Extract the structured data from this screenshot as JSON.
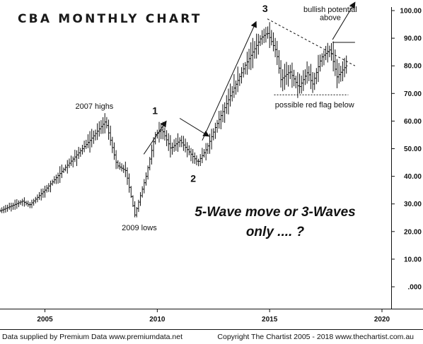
{
  "chart_data": {
    "type": "ohlc",
    "title": "CBA MONTHLY CHART",
    "xlabel": "",
    "ylabel": "",
    "xlim": [
      2003.0,
      2020.0
    ],
    "ylim": [
      0,
      100
    ],
    "x_ticks": [
      "2005",
      "2010",
      "2015",
      "2020"
    ],
    "y_ticks": [
      "100.00",
      "90.00",
      "80.00",
      "70.00",
      "60.00",
      "50.00",
      "40.00",
      "30.00",
      "20.00",
      "10.00",
      ".000"
    ],
    "grid": false,
    "anchors": [
      {
        "x": 2003.0,
        "y": 27.5
      },
      {
        "x": 2004.0,
        "y": 31
      },
      {
        "x": 2004.3,
        "y": 29.5
      },
      {
        "x": 2005.0,
        "y": 35
      },
      {
        "x": 2006.0,
        "y": 44
      },
      {
        "x": 2007.0,
        "y": 53
      },
      {
        "x": 2007.7,
        "y": 60
      },
      {
        "x": 2008.2,
        "y": 44
      },
      {
        "x": 2008.6,
        "y": 42
      },
      {
        "x": 2009.0,
        "y": 26
      },
      {
        "x": 2009.5,
        "y": 40
      },
      {
        "x": 2009.9,
        "y": 55
      },
      {
        "x": 2010.2,
        "y": 57
      },
      {
        "x": 2010.6,
        "y": 50
      },
      {
        "x": 2011.0,
        "y": 53
      },
      {
        "x": 2011.5,
        "y": 48
      },
      {
        "x": 2011.8,
        "y": 45
      },
      {
        "x": 2012.2,
        "y": 50
      },
      {
        "x": 2012.6,
        "y": 58
      },
      {
        "x": 2013.3,
        "y": 70
      },
      {
        "x": 2013.9,
        "y": 80
      },
      {
        "x": 2014.6,
        "y": 90
      },
      {
        "x": 2014.9,
        "y": 92
      },
      {
        "x": 2015.3,
        "y": 85
      },
      {
        "x": 2015.5,
        "y": 75
      },
      {
        "x": 2015.9,
        "y": 78
      },
      {
        "x": 2016.3,
        "y": 72
      },
      {
        "x": 2016.7,
        "y": 78
      },
      {
        "x": 2016.9,
        "y": 73
      },
      {
        "x": 2017.3,
        "y": 83
      },
      {
        "x": 2017.7,
        "y": 86
      },
      {
        "x": 2018.0,
        "y": 76
      },
      {
        "x": 2018.4,
        "y": 80
      }
    ],
    "annotations": [
      {
        "text": "2007 highs",
        "x": 2007.2,
        "y": 64.5
      },
      {
        "text": "2009 lows",
        "x": 2009.2,
        "y": 20.5
      },
      {
        "text": "bullish potential",
        "x": 2017.7,
        "y": 99.5
      },
      {
        "text": "above",
        "x": 2017.7,
        "y": 96.5
      },
      {
        "text": "possible red flag below",
        "x": 2017.0,
        "y": 65.0
      }
    ],
    "wave_labels": [
      {
        "text": "1",
        "x": 2009.9,
        "y": 62.5
      },
      {
        "text": "2",
        "x": 2011.6,
        "y": 38.0
      },
      {
        "text": "3",
        "x": 2014.8,
        "y": 99.5
      }
    ],
    "question": [
      "5-Wave move or 3-Waves",
      "only .... ?"
    ],
    "trendlines": {
      "resistance": {
        "from": [
          2014.9,
          97.0
        ],
        "to": [
          2018.8,
          80.0
        ],
        "style": "dashed"
      },
      "support": {
        "from": [
          2015.2,
          69.5
        ],
        "to": [
          2018.5,
          69.5
        ],
        "style": "dotted"
      },
      "breakout_level": {
        "from": [
          2017.8,
          88.5
        ],
        "to": [
          2018.8,
          88.5
        ],
        "style": "solid"
      }
    },
    "arrows": [
      {
        "from": [
          2009.4,
          48.0
        ],
        "to": [
          2010.4,
          60.0
        ]
      },
      {
        "from": [
          2011.0,
          61.0
        ],
        "to": [
          2012.3,
          54.5
        ]
      },
      {
        "from": [
          2012.0,
          53.0
        ],
        "to": [
          2014.4,
          96.0
        ]
      },
      {
        "from": [
          2017.8,
          89.5
        ],
        "to": [
          2018.8,
          103.0
        ]
      }
    ]
  },
  "footer": {
    "left": "Data supplied by Premium Data www.premiumdata.net",
    "right": "Copyright The Chartist 2005 - 2018 www.thechartist.com.au"
  }
}
